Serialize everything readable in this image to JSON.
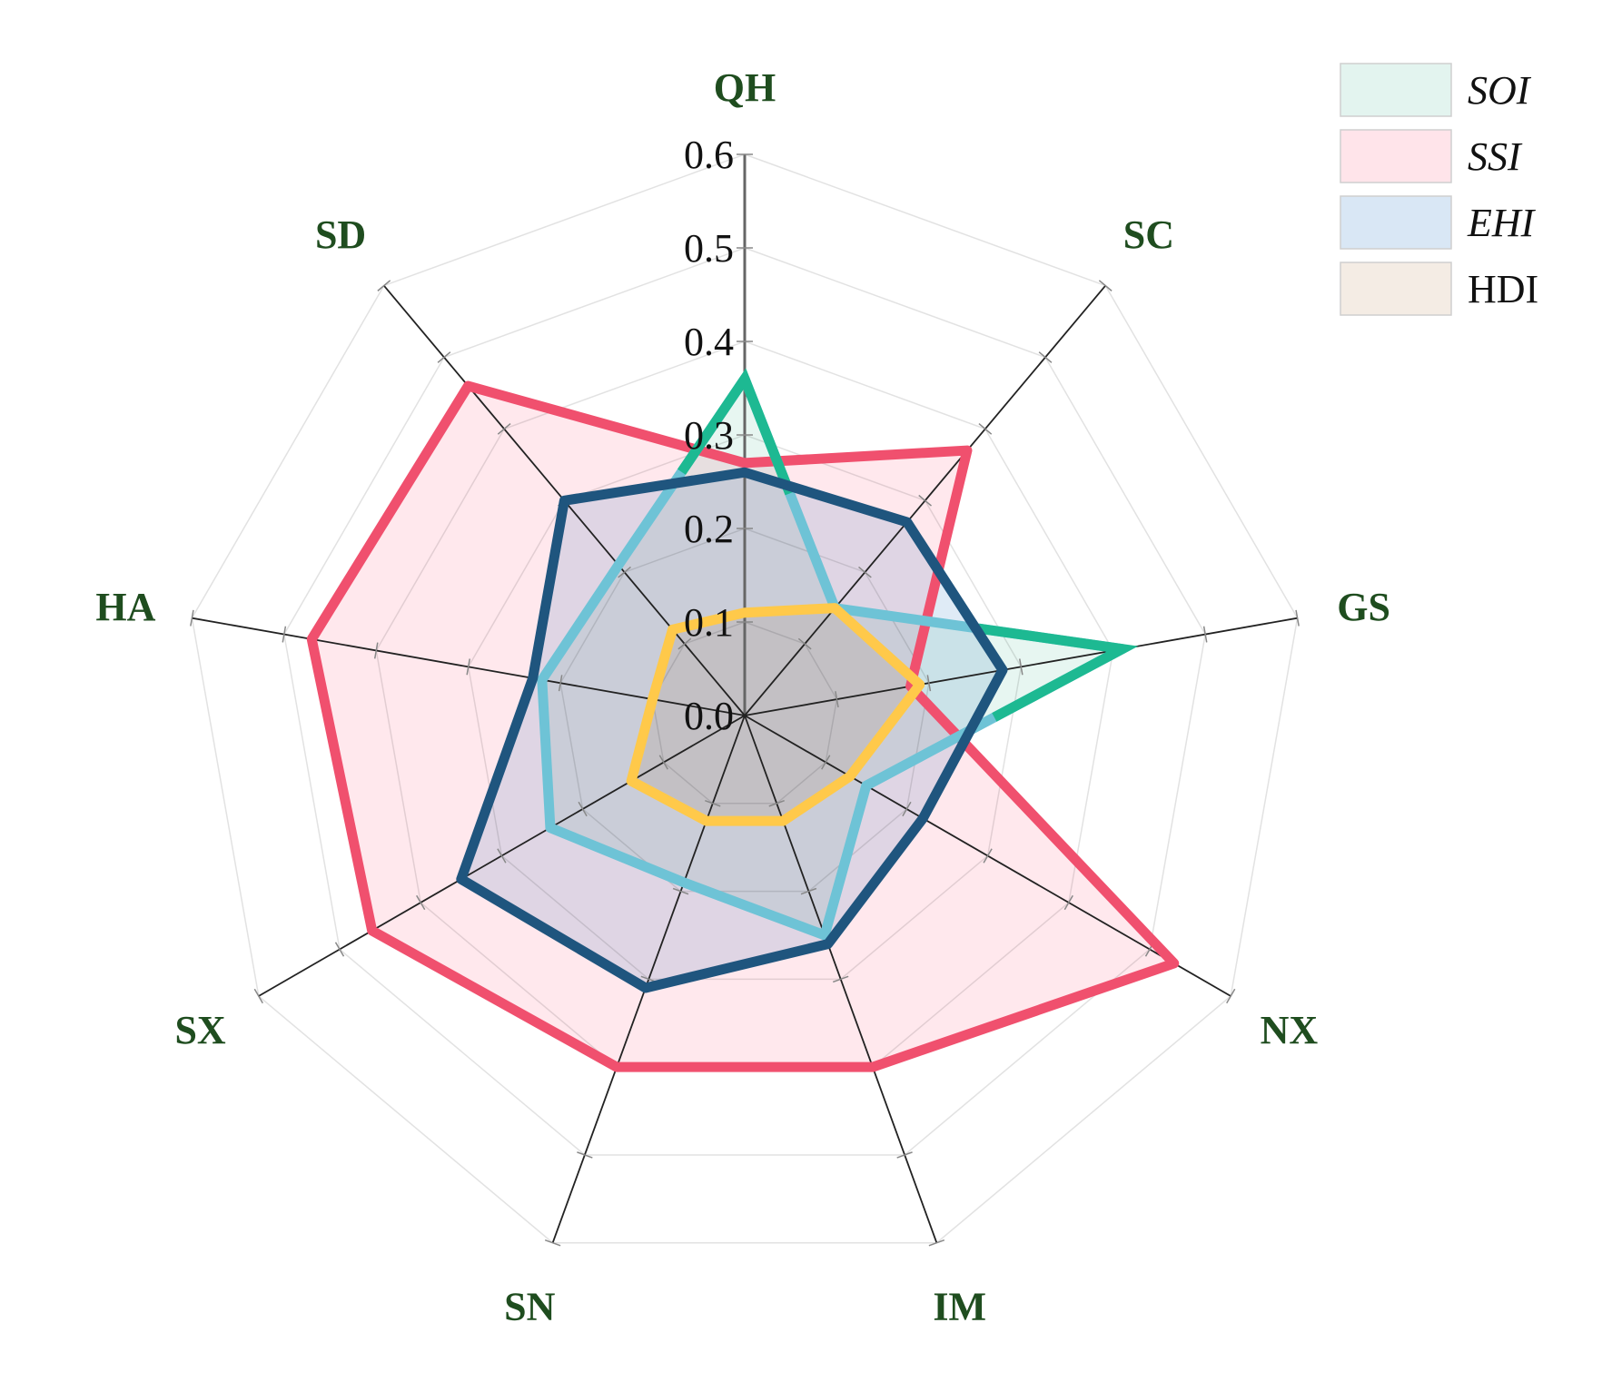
{
  "chart_data": {
    "type": "radar",
    "categories": [
      "QH",
      "SC",
      "GS",
      "NX",
      "IM",
      "SN",
      "SX",
      "HA",
      "SD"
    ],
    "rlim": [
      0,
      0.6
    ],
    "ticks": [
      "0.0",
      "0.1",
      "0.2",
      "0.3",
      "0.4",
      "0.5",
      "0.6"
    ],
    "tick_values": [
      0,
      0.1,
      0.2,
      0.3,
      0.4,
      0.5,
      0.6
    ],
    "grid": true,
    "legend_position": "top-right",
    "series": [
      {
        "name": "SSI",
        "italic": true,
        "values": [
          0.27,
          0.37,
          0.18,
          0.53,
          0.4,
          0.4,
          0.46,
          0.47,
          0.46
        ],
        "stroke": "#f0506e",
        "fill": "#ffe4ea"
      },
      {
        "name": "SOI",
        "italic": true,
        "values": [
          0.36,
          0.15,
          0.41,
          0.15,
          0.25,
          0.19,
          0.24,
          0.22,
          0.21
        ],
        "stroke": "#6ec3d6",
        "fill": "#e3f4ef",
        "peak_stroke": "#1db992"
      },
      {
        "name": "EHI",
        "italic": true,
        "values": [
          0.26,
          0.27,
          0.28,
          0.22,
          0.26,
          0.31,
          0.35,
          0.23,
          0.3
        ],
        "stroke": "#1f557e",
        "fill": "#d9e7f5"
      },
      {
        "name": "HDI",
        "italic": false,
        "values": [
          0.11,
          0.15,
          0.19,
          0.13,
          0.12,
          0.12,
          0.14,
          0.1,
          0.12
        ],
        "stroke": "#ffc94a",
        "fill": "#f4ece4"
      }
    ],
    "legend": [
      {
        "name": "SOI",
        "italic": true,
        "color": "#e3f4ef"
      },
      {
        "name": "SSI",
        "italic": true,
        "color": "#ffe4ea"
      },
      {
        "name": "EHI",
        "italic": true,
        "color": "#d9e7f5"
      },
      {
        "name": "HDI",
        "italic": false,
        "color": "#f4ece4"
      }
    ],
    "overlap_fill": "#d9d0ef"
  }
}
